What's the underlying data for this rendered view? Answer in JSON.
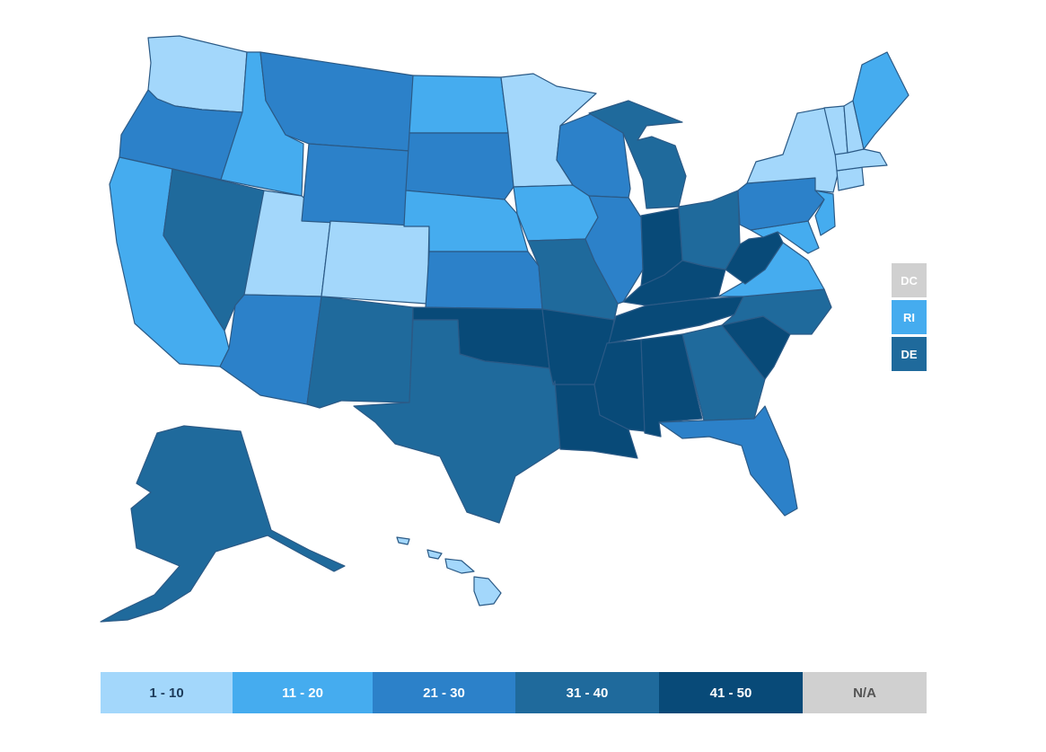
{
  "colors": {
    "bin1": "#a3d7fb",
    "bin2": "#45acef",
    "bin3": "#2c81c9",
    "bin4": "#1f6a9c",
    "bin5": "#084a78",
    "na": "#d0d0d0",
    "border": "#2b5a86"
  },
  "small_states": [
    {
      "code": "DC",
      "bin": "na"
    },
    {
      "code": "RI",
      "bin": "bin2"
    },
    {
      "code": "DE",
      "bin": "bin4"
    }
  ],
  "legend": [
    {
      "label": "1 - 10",
      "bin": "bin1",
      "text_color": "#1d3b5a"
    },
    {
      "label": "11 - 20",
      "bin": "bin2",
      "text_color": "#ffffff"
    },
    {
      "label": "21 - 30",
      "bin": "bin3",
      "text_color": "#ffffff"
    },
    {
      "label": "31 - 40",
      "bin": "bin4",
      "text_color": "#ffffff"
    },
    {
      "label": "41 - 50",
      "bin": "bin5",
      "text_color": "#ffffff"
    },
    {
      "label": "N/A",
      "bin": "na",
      "text_color": "#555555"
    }
  ],
  "states": [
    {
      "code": "WA",
      "bin": "bin1"
    },
    {
      "code": "OR",
      "bin": "bin3"
    },
    {
      "code": "CA",
      "bin": "bin2"
    },
    {
      "code": "ID",
      "bin": "bin2"
    },
    {
      "code": "NV",
      "bin": "bin4"
    },
    {
      "code": "UT",
      "bin": "bin1"
    },
    {
      "code": "AZ",
      "bin": "bin3"
    },
    {
      "code": "MT",
      "bin": "bin3"
    },
    {
      "code": "WY",
      "bin": "bin3"
    },
    {
      "code": "CO",
      "bin": "bin1"
    },
    {
      "code": "NM",
      "bin": "bin4"
    },
    {
      "code": "ND",
      "bin": "bin2"
    },
    {
      "code": "SD",
      "bin": "bin3"
    },
    {
      "code": "NE",
      "bin": "bin2"
    },
    {
      "code": "KS",
      "bin": "bin3"
    },
    {
      "code": "OK",
      "bin": "bin5"
    },
    {
      "code": "TX",
      "bin": "bin4"
    },
    {
      "code": "MN",
      "bin": "bin1"
    },
    {
      "code": "IA",
      "bin": "bin2"
    },
    {
      "code": "MO",
      "bin": "bin4"
    },
    {
      "code": "AR",
      "bin": "bin5"
    },
    {
      "code": "LA",
      "bin": "bin5"
    },
    {
      "code": "WI",
      "bin": "bin3"
    },
    {
      "code": "IL",
      "bin": "bin3"
    },
    {
      "code": "MI",
      "bin": "bin4"
    },
    {
      "code": "IN",
      "bin": "bin5"
    },
    {
      "code": "OH",
      "bin": "bin4"
    },
    {
      "code": "KY",
      "bin": "bin5"
    },
    {
      "code": "TN",
      "bin": "bin5"
    },
    {
      "code": "MS",
      "bin": "bin5"
    },
    {
      "code": "AL",
      "bin": "bin5"
    },
    {
      "code": "GA",
      "bin": "bin4"
    },
    {
      "code": "FL",
      "bin": "bin3"
    },
    {
      "code": "SC",
      "bin": "bin5"
    },
    {
      "code": "NC",
      "bin": "bin4"
    },
    {
      "code": "VA",
      "bin": "bin2"
    },
    {
      "code": "WV",
      "bin": "bin5"
    },
    {
      "code": "MD",
      "bin": "bin2"
    },
    {
      "code": "PA",
      "bin": "bin3"
    },
    {
      "code": "NJ",
      "bin": "bin2"
    },
    {
      "code": "NY",
      "bin": "bin1"
    },
    {
      "code": "CT",
      "bin": "bin1"
    },
    {
      "code": "MA",
      "bin": "bin1"
    },
    {
      "code": "VT",
      "bin": "bin1"
    },
    {
      "code": "NH",
      "bin": "bin1"
    },
    {
      "code": "ME",
      "bin": "bin2"
    },
    {
      "code": "AK",
      "bin": "bin4"
    },
    {
      "code": "HI",
      "bin": "bin1"
    }
  ]
}
